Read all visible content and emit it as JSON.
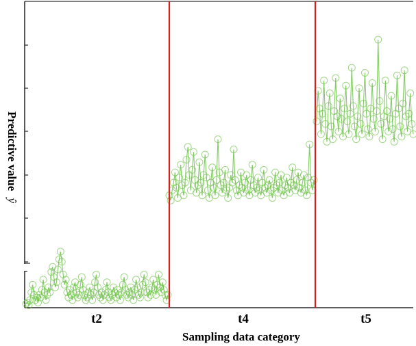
{
  "chart_data": {
    "type": "line",
    "xlabel": "Sampling data category",
    "ylabel": "Predictive value",
    "ylabel_symbol": "ŷ",
    "categories": [
      "t2",
      "t4",
      "t5"
    ],
    "grid": false,
    "legend": "none",
    "marker": "open-circle",
    "series_color": "#6fc24a",
    "separator_color": "#d42020",
    "series": [
      {
        "segments": [
          {
            "category": "t2",
            "values": [
              0.15,
              0.2,
              0.1,
              0.3,
              0.6,
              0.9,
              0.5,
              0.3,
              0.4,
              0.2,
              0.5,
              0.4,
              0.7,
              1.1,
              0.6,
              0.3,
              0.5,
              0.8,
              0.6,
              1.4,
              1.6,
              1.2,
              0.8,
              1.0,
              1.5,
              1.9,
              2.2,
              1.8,
              1.3,
              0.9,
              1.1,
              0.6,
              0.4,
              0.7,
              0.5,
              0.3,
              0.8,
              1.0,
              0.6,
              0.4,
              0.5,
              0.9,
              1.2,
              0.7,
              0.5,
              0.3,
              0.4,
              0.6,
              0.8,
              0.5,
              0.3,
              0.6,
              1.0,
              1.3,
              0.8,
              0.5,
              0.4,
              0.6,
              0.3,
              0.5,
              0.7,
              1.0,
              0.6,
              0.4,
              0.3,
              0.5,
              0.8,
              0.6,
              0.4,
              0.7,
              0.5,
              0.3,
              0.6,
              0.9,
              1.2,
              0.7,
              0.5,
              0.4,
              0.6,
              0.8,
              0.5,
              0.3,
              0.7,
              1.1,
              0.8,
              0.5,
              0.4,
              0.6,
              0.9,
              1.3,
              1.0,
              0.6,
              0.4,
              0.7,
              0.5,
              0.8,
              1.1,
              0.7,
              0.5,
              0.9,
              1.3,
              0.8,
              0.6,
              1.0,
              0.7,
              0.5,
              0.3,
              0.5
            ]
          },
          {
            "category": "t4",
            "values": [
              4.4,
              4.2,
              4.6,
              4.9,
              5.3,
              4.7,
              4.3,
              5.1,
              5.6,
              4.8,
              4.4,
              4.9,
              5.8,
              6.3,
              5.2,
              4.6,
              5.4,
              6.1,
              5.0,
              4.5,
              4.8,
              5.7,
              4.9,
              4.4,
              5.2,
              6.0,
              5.1,
              4.6,
              4.3,
              4.9,
              5.5,
              4.7,
              4.4,
              5.0,
              6.6,
              5.3,
              4.8,
              4.5,
              4.9,
              5.4,
              4.6,
              4.3,
              4.7,
              5.2,
              4.9,
              6.2,
              5.0,
              4.6,
              4.4,
              4.8,
              5.3,
              4.7,
              4.5,
              4.9,
              5.2,
              4.6,
              4.4,
              5.0,
              5.6,
              4.8,
              4.5,
              4.7,
              5.1,
              4.6,
              4.4,
              4.9,
              5.4,
              4.7,
              4.5,
              4.8,
              5.0,
              4.6,
              4.3,
              4.7,
              5.3,
              4.8,
              4.5,
              4.9,
              5.2,
              4.6,
              4.4,
              4.8,
              5.1,
              4.7,
              4.5,
              4.9,
              5.5,
              4.8,
              4.6,
              5.0,
              5.3,
              4.7,
              4.5,
              4.9,
              5.2,
              4.6,
              4.4,
              5.1,
              6.4,
              4.9,
              4.6,
              5.0
            ]
          },
          {
            "category": "t5",
            "values": [
              7.3,
              8.5,
              7.8,
              6.8,
              7.6,
              8.9,
              7.2,
              6.5,
              7.9,
              8.4,
              7.1,
              6.6,
              7.7,
              9.0,
              7.5,
              6.9,
              8.2,
              7.4,
              6.7,
              7.8,
              8.7,
              7.3,
              6.8,
              7.6,
              9.4,
              7.9,
              7.1,
              6.6,
              7.5,
              8.6,
              7.2,
              6.8,
              8.0,
              9.2,
              7.6,
              7.0,
              6.7,
              7.8,
              8.8,
              7.4,
              6.9,
              7.7,
              10.5,
              8.1,
              7.2,
              6.6,
              7.5,
              8.9,
              7.7,
              6.9,
              7.4,
              8.3,
              7.0,
              6.5,
              7.6,
              9.1,
              7.8,
              7.1,
              6.7,
              8.0,
              9.3,
              7.5,
              6.9,
              7.6,
              8.4,
              7.2,
              6.8
            ]
          }
        ]
      }
    ]
  }
}
